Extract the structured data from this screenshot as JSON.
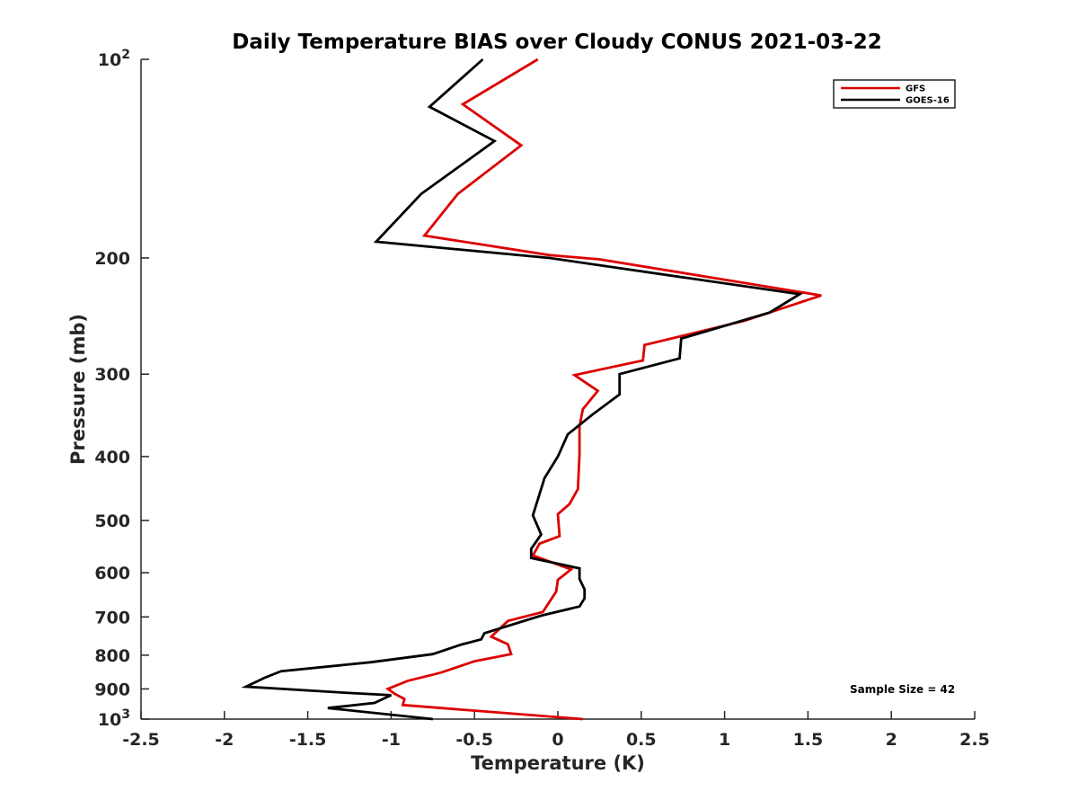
{
  "chart_data": {
    "type": "line",
    "title": "Daily Temperature BIAS over Cloudy CONUS 2021-03-22",
    "xlabel": "Temperature (K)",
    "ylabel": "Pressure (mb)",
    "xlim": [
      -2.5,
      2.5
    ],
    "ylim": [
      100,
      1000
    ],
    "y_scale": "log",
    "y_reversed": true,
    "x_ticks": [
      "-2.5",
      "-2",
      "-1.5",
      "-1",
      "-0.5",
      "0",
      "0.5",
      "1",
      "1.5",
      "2",
      "2.5"
    ],
    "x_tick_values": [
      -2.5,
      -2,
      -1.5,
      -1,
      -0.5,
      0,
      0.5,
      1,
      1.5,
      2,
      2.5
    ],
    "y_ticks": [
      {
        "value": 100,
        "base": "10",
        "exp": "2"
      },
      {
        "value": 200,
        "label": "200"
      },
      {
        "value": 300,
        "label": "300"
      },
      {
        "value": 400,
        "label": "400"
      },
      {
        "value": 500,
        "label": "500"
      },
      {
        "value": 600,
        "label": "600"
      },
      {
        "value": 700,
        "label": "700"
      },
      {
        "value": 800,
        "label": "800"
      },
      {
        "value": 900,
        "label": "900"
      },
      {
        "value": 1000,
        "base": "10",
        "exp": "3"
      }
    ],
    "grid": false,
    "legend_position": "top-right",
    "annotation": "Sample Size = 42",
    "series": [
      {
        "name": "GFS",
        "color": "#dd0000",
        "points": [
          [
            -0.12,
            100
          ],
          [
            -0.57,
            117
          ],
          [
            -0.22,
            135
          ],
          [
            -0.6,
            160
          ],
          [
            -0.8,
            185
          ],
          [
            -0.05,
            198
          ],
          [
            0.25,
            201
          ],
          [
            1.58,
            228
          ],
          [
            1.12,
            249
          ],
          [
            0.52,
            271
          ],
          [
            0.51,
            286
          ],
          [
            0.1,
            301
          ],
          [
            0.24,
            318
          ],
          [
            0.15,
            339
          ],
          [
            0.13,
            360
          ],
          [
            0.13,
            397
          ],
          [
            0.12,
            448
          ],
          [
            0.07,
            472
          ],
          [
            0.0,
            489
          ],
          [
            0.01,
            528
          ],
          [
            -0.11,
            542
          ],
          [
            -0.15,
            565
          ],
          [
            0.08,
            593
          ],
          [
            0.0,
            615
          ],
          [
            -0.01,
            641
          ],
          [
            -0.09,
            688
          ],
          [
            -0.3,
            710
          ],
          [
            -0.4,
            750
          ],
          [
            -0.3,
            770
          ],
          [
            -0.28,
            797
          ],
          [
            -0.5,
            817
          ],
          [
            -0.7,
            850
          ],
          [
            -0.9,
            875
          ],
          [
            -1.02,
            900
          ],
          [
            -0.98,
            915
          ],
          [
            -0.92,
            932
          ],
          [
            -0.93,
            952
          ],
          [
            0.15,
            1000
          ]
        ]
      },
      {
        "name": "GOES-16",
        "color": "#000000",
        "points": [
          [
            -0.45,
            100
          ],
          [
            -0.77,
            118
          ],
          [
            -0.38,
            133
          ],
          [
            -0.82,
            160
          ],
          [
            -1.09,
            189
          ],
          [
            -0.05,
            200
          ],
          [
            1.45,
            227
          ],
          [
            1.27,
            242
          ],
          [
            0.74,
            265
          ],
          [
            0.73,
            284
          ],
          [
            0.37,
            300
          ],
          [
            0.37,
            322
          ],
          [
            0.21,
            345
          ],
          [
            0.06,
            370
          ],
          [
            0.0,
            400
          ],
          [
            -0.08,
            431
          ],
          [
            -0.15,
            491
          ],
          [
            -0.1,
            525
          ],
          [
            -0.16,
            552
          ],
          [
            -0.16,
            570
          ],
          [
            0.13,
            591
          ],
          [
            0.13,
            613
          ],
          [
            0.16,
            636
          ],
          [
            0.16,
            656
          ],
          [
            0.13,
            675
          ],
          [
            -0.1,
            697
          ],
          [
            -0.44,
            741
          ],
          [
            -0.46,
            757
          ],
          [
            -0.58,
            771
          ],
          [
            -0.75,
            797
          ],
          [
            -1.12,
            820
          ],
          [
            -1.66,
            846
          ],
          [
            -1.76,
            866
          ],
          [
            -1.87,
            893
          ],
          [
            -1.28,
            912
          ],
          [
            -1.0,
            920
          ],
          [
            -1.1,
            945
          ],
          [
            -1.38,
            962
          ],
          [
            -0.75,
            1000
          ]
        ]
      }
    ]
  }
}
